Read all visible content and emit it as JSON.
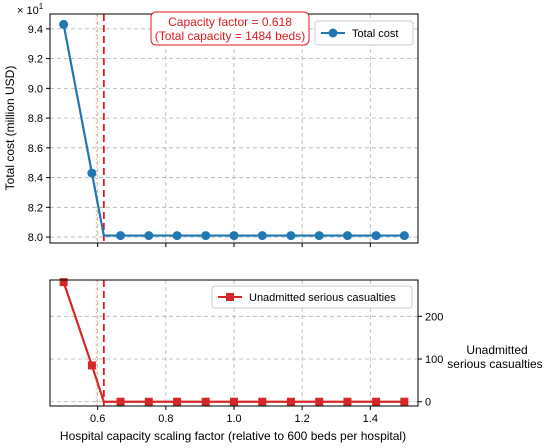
{
  "chart_data": [
    {
      "type": "line",
      "name": "total-cost-panel",
      "title": "",
      "xlabel": "",
      "ylabel": "Total cost (million USD)",
      "y_offset_text": "× 10",
      "y_offset_exponent": "1",
      "xlim": [
        0.46,
        1.54
      ],
      "ylim": [
        7.96,
        9.5
      ],
      "xticks": [
        0.6,
        0.8,
        1.0,
        1.2,
        1.4
      ],
      "xtick_labels_visible": false,
      "yticks": [
        8.0,
        8.2,
        8.4,
        8.6,
        8.8,
        9.0,
        9.2,
        9.4
      ],
      "ytick_labels": [
        "8.0",
        "8.2",
        "8.4",
        "8.6",
        "8.8",
        "9.0",
        "9.2",
        "9.4"
      ],
      "grid": true,
      "legend_position": "upper right",
      "series": [
        {
          "name": "Total cost",
          "color": "#1f77b4",
          "marker": "circle",
          "x": [
            0.5,
            0.583,
            0.618,
            0.667,
            0.75,
            0.833,
            0.917,
            1.0,
            1.083,
            1.167,
            1.25,
            1.333,
            1.417,
            1.5
          ],
          "y": [
            9.43,
            8.43,
            8.01,
            8.01,
            8.01,
            8.01,
            8.01,
            8.01,
            8.01,
            8.01,
            8.01,
            8.01,
            8.01,
            8.01
          ],
          "marker_mask": [
            true,
            true,
            false,
            true,
            true,
            true,
            true,
            true,
            true,
            true,
            true,
            true,
            true,
            true
          ]
        }
      ],
      "vlines": [
        {
          "x": 0.618,
          "color": "#e31a1c",
          "style": "dashed",
          "width": 1.8
        },
        {
          "x": 0.596,
          "color": "#f5c77e",
          "style": "dotted",
          "width": 1
        }
      ],
      "annotation": {
        "lines": [
          "Capacity factor = 0.618",
          "(Total capacity = 1484 beds)"
        ],
        "color": "#e31a1c",
        "position": "top-center"
      }
    },
    {
      "type": "line",
      "name": "unadmitted-panel",
      "title": "",
      "xlabel": "Hospital capacity scaling factor (relative to 600 beds per hospital)",
      "ylabel_lines": [
        "Unadmitted",
        "serious casualties"
      ],
      "ylabel_side": "right",
      "xlim": [
        0.46,
        1.54
      ],
      "ylim": [
        -10,
        285
      ],
      "xticks": [
        0.6,
        0.8,
        1.0,
        1.2,
        1.4
      ],
      "xtick_labels": [
        "0.6",
        "0.8",
        "1.0",
        "1.2",
        "1.4"
      ],
      "yticks": [
        0,
        100,
        200
      ],
      "ytick_labels": [
        "0",
        "100",
        "200"
      ],
      "grid": true,
      "legend_position": "upper right",
      "series": [
        {
          "name": "Unadmitted serious casualties",
          "color": "#d62728",
          "marker": "square",
          "x": [
            0.5,
            0.583,
            0.618,
            0.667,
            0.75,
            0.833,
            0.917,
            1.0,
            1.083,
            1.167,
            1.25,
            1.333,
            1.417,
            1.5
          ],
          "y": [
            280,
            85,
            0,
            0,
            0,
            0,
            0,
            0,
            0,
            0,
            0,
            0,
            0,
            0
          ],
          "marker_mask": [
            true,
            true,
            false,
            true,
            true,
            true,
            true,
            true,
            true,
            true,
            true,
            true,
            true,
            true
          ]
        }
      ],
      "vlines": [
        {
          "x": 0.618,
          "color": "#e31a1c",
          "style": "dashed",
          "width": 1.8
        },
        {
          "x": 0.596,
          "color": "#f5c77e",
          "style": "dotted",
          "width": 1
        }
      ]
    }
  ]
}
